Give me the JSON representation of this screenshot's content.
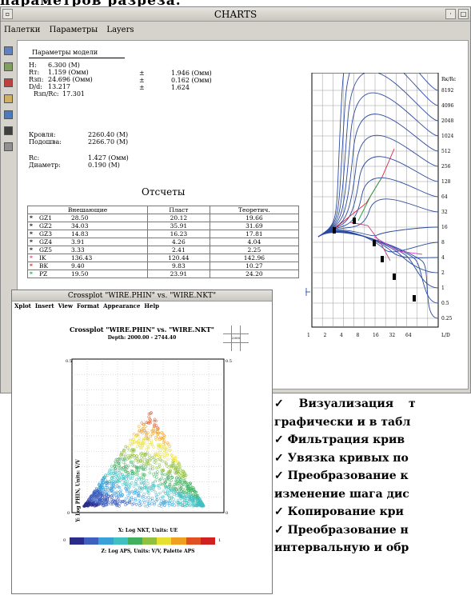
{
  "top_cut_text": "параметров разреза.",
  "window": {
    "title": "CHARTS",
    "menu": [
      "Палетки",
      "Параметры",
      "Layers"
    ]
  },
  "params": {
    "header": "Параметры модели",
    "rows": [
      {
        "k": "H:",
        "v": "6.300 (M)"
      },
      {
        "k": "Rт:",
        "v": "1.159 (Омм)"
      },
      {
        "k": "Rзп:",
        "v": "24.696 (Омм)"
      },
      {
        "k": "D/d:",
        "v": "13.217"
      },
      {
        "k": "Rзп/Rс:",
        "v": "17.301"
      }
    ],
    "pm": [
      {
        "v": "1.946 (Омм)"
      },
      {
        "v": "0.162 (Омм)"
      },
      {
        "v": "1.624"
      }
    ],
    "krovlya_k": "Кровля:",
    "krovlya_v": "2260.40 (M)",
    "podosh_k": "Подошва:",
    "podosh_v": "2266.70 (M)",
    "rc_k": "Rс:",
    "rc_v": "1.427 (Омм)",
    "diam_k": "Диаметр:",
    "diam_v": "0.190 (M)"
  },
  "report": {
    "title": "Отсчеты",
    "headers": [
      "Внешающие",
      "Пласт",
      "Теоретич."
    ],
    "rows": [
      {
        "m": "*",
        "n": "GZ1",
        "a": "28.50",
        "b": "20.12",
        "c": "19.66",
        "col": "#000"
      },
      {
        "m": "*",
        "n": "GZ2",
        "a": "34.03",
        "b": "35.91",
        "c": "31.69",
        "col": "#000"
      },
      {
        "m": "*",
        "n": "GZ3",
        "a": "14.83",
        "b": "16.23",
        "c": "17.81",
        "col": "#000"
      },
      {
        "m": "*",
        "n": "GZ4",
        "a": "3.91",
        "b": "4.26",
        "c": "4.04",
        "col": "#000"
      },
      {
        "m": "*",
        "n": "GZ5",
        "a": "3.33",
        "b": "2.41",
        "c": "2.25",
        "col": "#000"
      },
      {
        "m": "*",
        "n": "IK",
        "a": "136.43",
        "b": "120.44",
        "c": "142.96",
        "col": "#d04080"
      },
      {
        "m": "*",
        "n": "BK",
        "a": "9.40",
        "b": "9.83",
        "c": "10.27",
        "col": "#d02020"
      },
      {
        "m": "*",
        "n": "PZ",
        "a": "19.50",
        "b": "23.91",
        "c": "24.20",
        "col": "#20a040"
      }
    ]
  },
  "chart": {
    "ylabel": "Rк/Rс",
    "xlabel": "L/D",
    "yticks": [
      "8192",
      "4096",
      "2048",
      "1024",
      "512",
      "256",
      "128",
      "64",
      "32",
      "16",
      "8",
      "4",
      "2",
      "1",
      "0.5",
      "0.25"
    ],
    "xticks": [
      "1",
      "2",
      "4",
      "8",
      "16",
      "32",
      "64"
    ]
  },
  "crossplot": {
    "window_title": "Crossplot \"WIRE.PHIN\" vs. \"WIRE.NKT\"",
    "menu": [
      "Xplot",
      "Insert",
      "View",
      "Format",
      "Appearance",
      "Help"
    ],
    "title": "Crossplot \"WIRE.PHIN\" vs. \"WIRE.NKT\"",
    "subtitle": "Depth: 2000.00 - 2744.40",
    "center_label": "2000",
    "ylabel": "Y: Log PHIN, Units: V/V",
    "xlabel": "X: Log NKT, Units: UE",
    "zlabel": "Z: Log APS, Units: V/V, Palette APS",
    "z_min": "0",
    "z_max": "1",
    "top_left": "0.5",
    "top_right": "0.5",
    "bottom_left": "0",
    "bottom_right": "0",
    "palette": [
      "#2b2b8c",
      "#4060c0",
      "#3aa0d8",
      "#40c0c0",
      "#40b060",
      "#90c040",
      "#e8e030",
      "#f0a020",
      "#e05020",
      "#d02020"
    ]
  },
  "bullets": [
    "✓ Визуализация т",
    "графически и в табл",
    "✓ Фильтрация крив",
    "✓ Увязка кривых по",
    "✓ Преобразование к",
    "изменение шага дис",
    "✓ Копирование кри",
    "✓ Преобразование н",
    "интервальную и обр"
  ]
}
